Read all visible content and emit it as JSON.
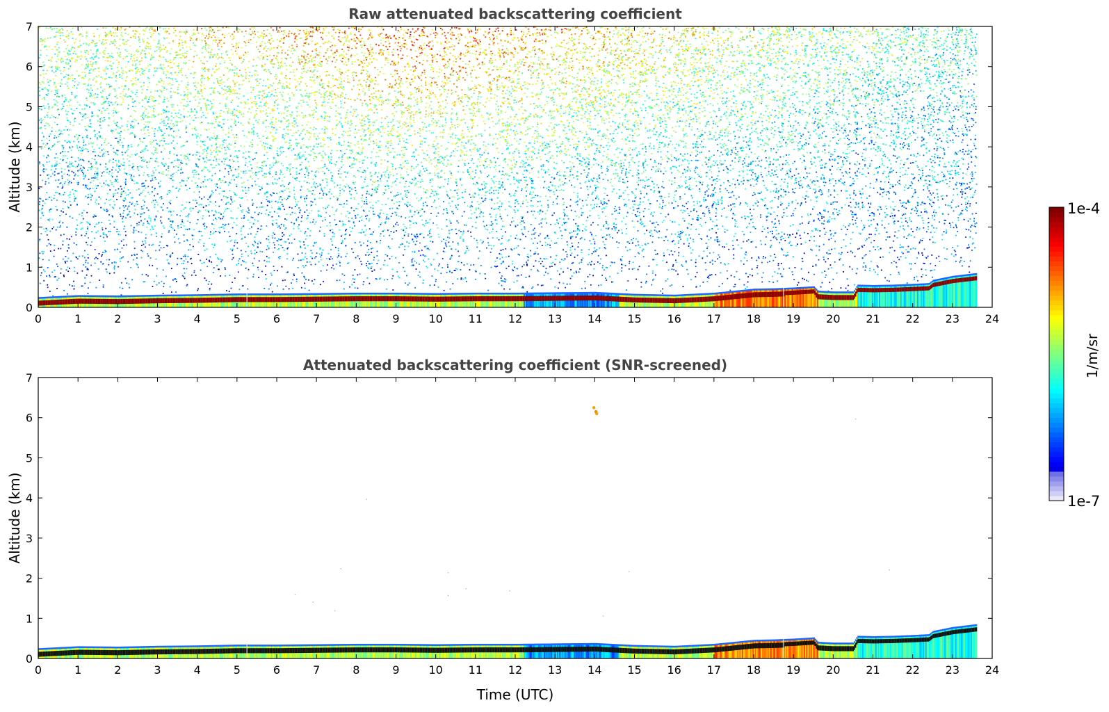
{
  "chart_data": [
    {
      "type": "heatmap",
      "title": "Raw attenuated backscattering coefficient",
      "xlabel": "",
      "ylabel": "Altitude (km)",
      "xlim": [
        0,
        24
      ],
      "ylim": [
        0,
        7
      ],
      "xticks": [
        0,
        1,
        2,
        3,
        4,
        5,
        6,
        7,
        8,
        9,
        10,
        11,
        12,
        13,
        14,
        15,
        16,
        17,
        18,
        19,
        20,
        21,
        22,
        23,
        24
      ],
      "yticks": [
        0,
        1,
        2,
        3,
        4,
        5,
        6,
        7
      ],
      "data_end_time": 23.6,
      "aerosol_layer_top_km": [
        [
          0,
          0.22
        ],
        [
          1,
          0.27
        ],
        [
          2,
          0.26
        ],
        [
          3,
          0.28
        ],
        [
          4,
          0.29
        ],
        [
          5,
          0.31
        ],
        [
          6,
          0.31
        ],
        [
          7,
          0.32
        ],
        [
          8,
          0.33
        ],
        [
          9,
          0.33
        ],
        [
          10,
          0.32
        ],
        [
          11,
          0.33
        ],
        [
          12,
          0.33
        ],
        [
          13,
          0.34
        ],
        [
          14,
          0.35
        ],
        [
          15,
          0.3
        ],
        [
          16,
          0.28
        ],
        [
          17,
          0.33
        ],
        [
          17.5,
          0.38
        ],
        [
          18,
          0.43
        ],
        [
          18.5,
          0.44
        ],
        [
          19,
          0.46
        ],
        [
          19.5,
          0.49
        ],
        [
          19.6,
          0.38
        ],
        [
          20,
          0.36
        ],
        [
          20.5,
          0.36
        ],
        [
          20.6,
          0.53
        ],
        [
          21,
          0.52
        ],
        [
          21.5,
          0.53
        ],
        [
          22,
          0.55
        ],
        [
          22.4,
          0.57
        ],
        [
          22.5,
          0.65
        ],
        [
          23,
          0.75
        ],
        [
          23.6,
          0.82
        ]
      ],
      "noise_level": "strong"
    },
    {
      "type": "heatmap",
      "title": "Attenuated backscattering coefficient (SNR-screened)",
      "xlabel": "Time (UTC)",
      "ylabel": "Altitude (km)",
      "xlim": [
        0,
        24
      ],
      "ylim": [
        0,
        7
      ],
      "xticks": [
        0,
        1,
        2,
        3,
        4,
        5,
        6,
        7,
        8,
        9,
        10,
        11,
        12,
        13,
        14,
        15,
        16,
        17,
        18,
        19,
        20,
        21,
        22,
        23,
        24
      ],
      "yticks": [
        0,
        1,
        2,
        3,
        4,
        5,
        6,
        7
      ],
      "data_end_time": 23.6,
      "noise_level": "screened",
      "isolated_features": [
        {
          "time": 13.98,
          "altitude_km": 6.25,
          "color": "#f5a000"
        },
        {
          "time": 14.03,
          "altitude_km": 6.15,
          "color": "#f08c00"
        },
        {
          "time": 14.05,
          "altitude_km": 6.1,
          "color": "#f5a000"
        }
      ]
    }
  ],
  "colorbar": {
    "max_label": "1e-4",
    "min_label": "1e-7",
    "unit_label": "1/m/sr",
    "colormap": "jet-with-pale-low-end"
  }
}
